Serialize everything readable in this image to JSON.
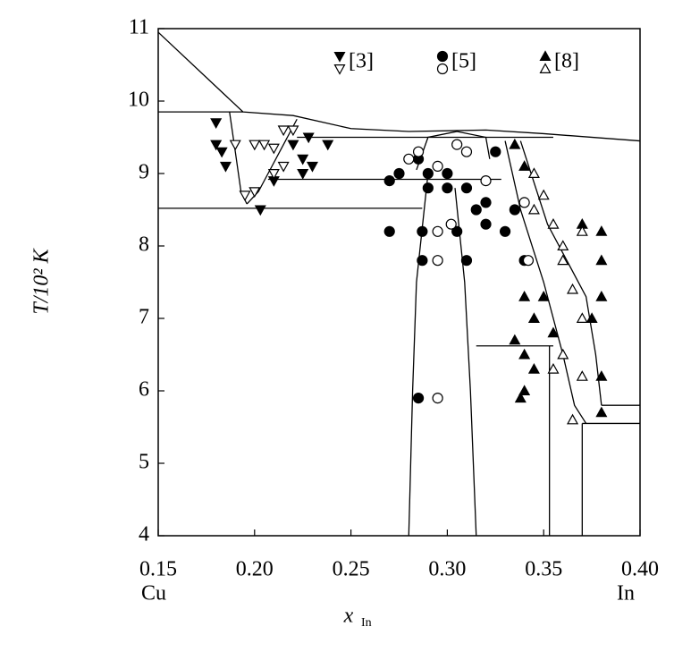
{
  "chart_data": {
    "type": "scatter",
    "ylabel": "T/10² K",
    "xlabel": "x",
    "xlabel_sub": "In",
    "annotations": [
      "Cu",
      "In"
    ],
    "xlim": [
      0.15,
      0.4
    ],
    "ylim": [
      4,
      11
    ],
    "xticks": [
      0.15,
      {
        "value": 0.2,
        "label": "0.20"
      },
      0.25,
      {
        "value": 0.3,
        "label": "0.30"
      },
      0.35,
      {
        "value": 0.4,
        "label": "0.40"
      }
    ],
    "yticks": [
      4,
      5,
      6,
      7,
      8,
      9,
      10,
      11
    ],
    "color": "#000000",
    "boundaries": [
      {
        "x": [
          0.15,
          0.194,
          0.22,
          0.25,
          0.28,
          0.32,
          0.35,
          0.4
        ],
        "y": [
          10.95,
          9.85,
          9.8,
          9.62,
          9.58,
          9.6,
          9.55,
          9.45
        ]
      },
      {
        "x": [
          0.15,
          0.194
        ],
        "y": [
          9.85,
          9.85
        ]
      },
      {
        "x": [
          0.15,
          0.287
        ],
        "y": [
          8.52,
          8.52
        ]
      },
      {
        "x": [
          0.187,
          0.19,
          0.193,
          0.196
        ],
        "y": [
          9.85,
          9.3,
          8.74,
          8.58
        ]
      },
      {
        "x": [
          0.196,
          0.202,
          0.207,
          0.214,
          0.222
        ],
        "y": [
          8.58,
          8.75,
          9.0,
          9.35,
          9.75
        ]
      },
      {
        "x": [
          0.207,
          0.328
        ],
        "y": [
          8.92,
          8.92
        ]
      },
      {
        "x": [
          0.222,
          0.355
        ],
        "y": [
          9.5,
          9.5
        ]
      },
      {
        "x": [
          0.284,
          0.29,
          0.305,
          0.32,
          0.322
        ],
        "y": [
          9.05,
          9.5,
          9.58,
          9.5,
          9.2
        ]
      },
      {
        "x": [
          0.29,
          0.284,
          0.282,
          0.28
        ],
        "y": [
          9.0,
          7.5,
          6.0,
          4.0
        ]
      },
      {
        "x": [
          0.304,
          0.309,
          0.312,
          0.315
        ],
        "y": [
          8.8,
          7.5,
          6.0,
          4.0
        ]
      },
      {
        "x": [
          0.315,
          0.355
        ],
        "y": [
          6.62,
          6.62
        ]
      },
      {
        "x": [
          0.353,
          0.353
        ],
        "y": [
          6.62,
          4.0
        ]
      },
      {
        "x": [
          0.37,
          0.37
        ],
        "y": [
          5.55,
          4.0
        ]
      },
      {
        "x": [
          0.33,
          0.338,
          0.35,
          0.36,
          0.366,
          0.372
        ],
        "y": [
          9.45,
          8.5,
          7.5,
          6.5,
          5.8,
          5.55
        ]
      },
      {
        "x": [
          0.338,
          0.352,
          0.362,
          0.372,
          0.377,
          0.38
        ],
        "y": [
          9.45,
          8.3,
          7.8,
          7.3,
          6.5,
          5.8
        ]
      },
      {
        "x": [
          0.37,
          0.4
        ],
        "y": [
          5.55,
          5.55
        ]
      },
      {
        "x": [
          0.38,
          0.4
        ],
        "y": [
          5.8,
          5.8
        ]
      }
    ],
    "series": [
      {
        "name": "[3]",
        "marker": "triangle-down",
        "filled_x": [
          0.18,
          0.18,
          0.183,
          0.185,
          0.203,
          0.21,
          0.22,
          0.225,
          0.225,
          0.228,
          0.23,
          0.238
        ],
        "filled_y": [
          9.7,
          9.4,
          9.3,
          9.1,
          8.5,
          8.9,
          9.4,
          9.2,
          9.0,
          9.5,
          9.1,
          9.4
        ],
        "open_x": [
          0.195,
          0.2,
          0.19,
          0.2,
          0.205,
          0.21,
          0.215,
          0.22,
          0.21,
          0.215
        ],
        "open_y": [
          8.7,
          8.75,
          9.4,
          9.4,
          9.4,
          9.35,
          9.6,
          9.6,
          9.0,
          9.1
        ]
      },
      {
        "name": "[5]",
        "marker": "circle",
        "filled_x": [
          0.27,
          0.27,
          0.275,
          0.285,
          0.29,
          0.29,
          0.287,
          0.287,
          0.285,
          0.3,
          0.31,
          0.31,
          0.315,
          0.32,
          0.32,
          0.325,
          0.33,
          0.335,
          0.34,
          0.305,
          0.3
        ],
        "filled_y": [
          8.9,
          8.2,
          9.0,
          9.2,
          9.0,
          8.8,
          8.2,
          7.8,
          5.9,
          9.0,
          8.8,
          7.8,
          8.5,
          8.3,
          8.6,
          9.3,
          8.2,
          8.5,
          7.8,
          8.2,
          8.8
        ],
        "open_x": [
          0.28,
          0.285,
          0.295,
          0.295,
          0.295,
          0.302,
          0.305,
          0.31,
          0.295,
          0.342,
          0.34,
          0.32
        ],
        "open_y": [
          9.2,
          9.3,
          8.2,
          7.8,
          5.9,
          8.3,
          9.4,
          9.3,
          9.1,
          7.8,
          8.6,
          8.9
        ]
      },
      {
        "name": "[8]",
        "marker": "triangle-up",
        "filled_x": [
          0.335,
          0.34,
          0.34,
          0.345,
          0.34,
          0.335,
          0.34,
          0.338,
          0.37,
          0.38,
          0.38,
          0.375,
          0.38,
          0.38,
          0.38,
          0.345,
          0.35,
          0.355
        ],
        "filled_y": [
          9.4,
          9.1,
          7.3,
          7.0,
          6.5,
          6.7,
          6.0,
          5.9,
          8.3,
          8.2,
          7.8,
          7.0,
          7.3,
          6.2,
          5.7,
          6.3,
          7.3,
          6.8
        ],
        "open_x": [
          0.345,
          0.35,
          0.355,
          0.36,
          0.36,
          0.365,
          0.37,
          0.36,
          0.355,
          0.365,
          0.37,
          0.345,
          0.37
        ],
        "open_y": [
          9.0,
          8.7,
          8.3,
          8.0,
          7.8,
          7.4,
          7.0,
          6.5,
          6.3,
          5.6,
          6.2,
          8.5,
          8.2
        ]
      }
    ]
  }
}
